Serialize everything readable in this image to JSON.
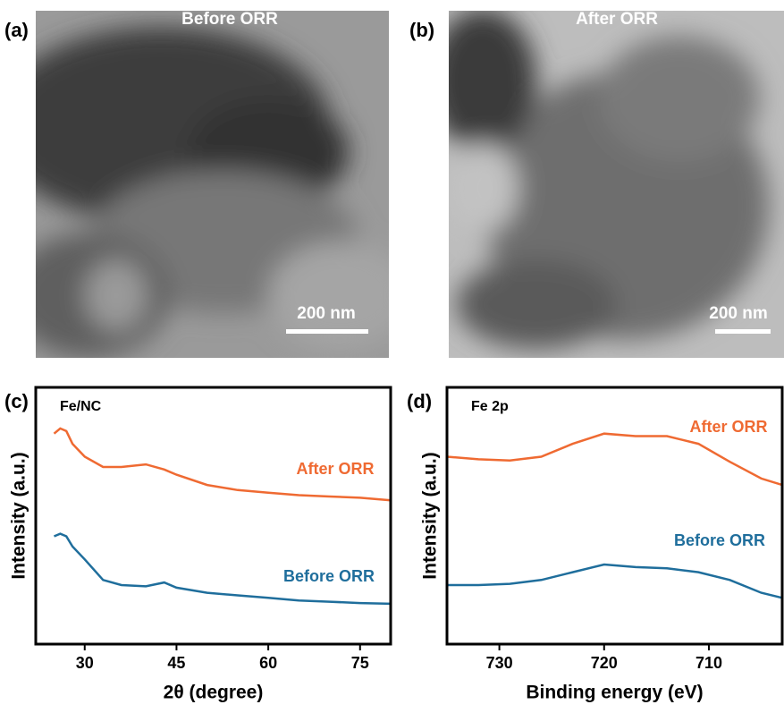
{
  "images": [
    {
      "panel_label": "(a)",
      "caption": "Before ORR",
      "scale_bar": "200 nm"
    },
    {
      "panel_label": "(b)",
      "caption": "After ORR",
      "scale_bar": "200 nm"
    }
  ],
  "chart_data": [
    {
      "type": "line",
      "panel_label": "(c)",
      "title": "Fe/NC",
      "x_label": "2θ (degree)",
      "y_label": "Intensity (a.u.)",
      "x": [
        25,
        26,
        27,
        28,
        30,
        33,
        36,
        40,
        43,
        45,
        50,
        55,
        60,
        65,
        70,
        75,
        80
      ],
      "xlim": [
        22,
        80
      ],
      "xticks": [
        30,
        45,
        60,
        75
      ],
      "ylim": [
        0,
        100
      ],
      "series": [
        {
          "name": "After ORR",
          "color": "#ef6a32",
          "values": [
            82,
            84,
            83,
            78,
            73,
            69,
            69,
            70,
            68,
            66,
            62,
            60,
            59,
            58,
            57.5,
            57,
            56
          ]
        },
        {
          "name": "Before ORR",
          "color": "#1f6e9c",
          "values": [
            42,
            43,
            42,
            38,
            33,
            25,
            23,
            22.5,
            24,
            22,
            20,
            19,
            18,
            17,
            16.5,
            16,
            15.7
          ]
        }
      ]
    },
    {
      "type": "line",
      "panel_label": "(d)",
      "title": "Fe 2p",
      "x_label": "Binding energy (eV)",
      "y_label": "Intensity (a.u.)",
      "x": [
        735,
        732,
        729,
        726,
        723,
        720,
        717,
        714,
        711,
        708,
        705,
        703
      ],
      "xlim": [
        735,
        703
      ],
      "xticks": [
        730,
        720,
        710
      ],
      "ylim": [
        0,
        100
      ],
      "series": [
        {
          "name": "After ORR",
          "color": "#ef6a32",
          "values": [
            73,
            72,
            71.5,
            73,
            78,
            82,
            81,
            81,
            78,
            71,
            64.5,
            62
          ]
        },
        {
          "name": "Before ORR",
          "color": "#1f6e9c",
          "values": [
            23,
            23,
            23.5,
            25,
            28,
            31,
            30,
            29.5,
            28,
            25,
            20,
            18
          ]
        }
      ]
    }
  ]
}
